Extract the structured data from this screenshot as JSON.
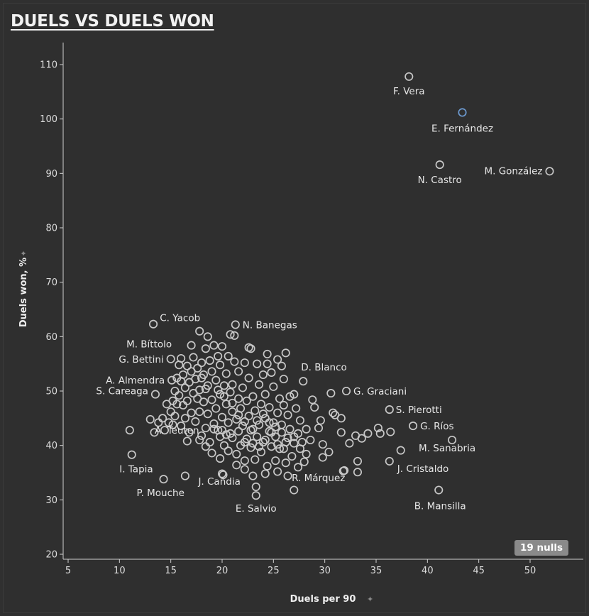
{
  "title": "DUELS VS DUELS WON",
  "nulls_badge": "19 nulls",
  "colors": {
    "background": "#2f2f2f",
    "point": "#c8c8c8",
    "highlight": "#6d9bd1",
    "axis": "#cfcfcf",
    "badge": "#8a8a8a"
  },
  "icons": {
    "pin": "pin-icon"
  },
  "chart_data": {
    "type": "scatter",
    "title": "DUELS VS DUELS WON",
    "xlabel": "Duels per 90",
    "ylabel": "Duels won, %",
    "xlim": [
      5,
      55
    ],
    "ylim": [
      19,
      115
    ],
    "xticks": [
      5,
      10,
      15,
      20,
      25,
      30,
      35,
      40,
      45,
      50
    ],
    "yticks": [
      20,
      30,
      40,
      50,
      60,
      70,
      80,
      90,
      100,
      110
    ],
    "grid": false,
    "labeled_points": [
      {
        "name": "F. Vera",
        "x": 38.2,
        "y": 107.8
      },
      {
        "name": "E. Fernández",
        "x": 43.4,
        "y": 101.2,
        "highlight": true
      },
      {
        "name": "N. Castro",
        "x": 41.2,
        "y": 91.6
      },
      {
        "name": "M. González",
        "x": 51.9,
        "y": 90.4
      },
      {
        "name": "C. Yacob",
        "x": 17.8,
        "y": 61.0
      },
      {
        "name": "N. Banegas",
        "x": 21.3,
        "y": 62.2
      },
      {
        "name": "M. Bíttolo",
        "x": 13.3,
        "y": 62.3
      },
      {
        "name": "G. Bettini",
        "x": 15.0,
        "y": 55.9
      },
      {
        "name": "A. Almendra",
        "x": 15.1,
        "y": 52.0
      },
      {
        "name": "D. Blanco",
        "x": 27.9,
        "y": 51.8
      },
      {
        "name": "G. Graciani",
        "x": 32.1,
        "y": 50.0
      },
      {
        "name": "S. Careaga",
        "x": 13.5,
        "y": 49.4
      },
      {
        "name": "S. Pierotti",
        "x": 36.3,
        "y": 46.6
      },
      {
        "name": "G. Ríos",
        "x": 38.6,
        "y": 43.6
      },
      {
        "name": "M. Sanabria",
        "x": 42.4,
        "y": 41.0
      },
      {
        "name": "A. Teuten",
        "x": 20.0,
        "y": 42.8
      },
      {
        "name": "I. Tapia",
        "x": 11.2,
        "y": 38.3
      },
      {
        "name": "J. Cristaldo",
        "x": 36.3,
        "y": 37.1
      },
      {
        "name": "R. Márquez",
        "x": 31.9,
        "y": 35.4
      },
      {
        "name": "J. Candia",
        "x": 20.1,
        "y": 34.6
      },
      {
        "name": "P. Mouche",
        "x": 14.3,
        "y": 33.8
      },
      {
        "name": "E. Salvio",
        "x": 23.3,
        "y": 30.8
      },
      {
        "name": "B. Mansilla",
        "x": 41.1,
        "y": 31.8
      }
    ],
    "points": [
      [
        23.3,
        32.4
      ],
      [
        27.0,
        31.8
      ],
      [
        16.4,
        34.4
      ],
      [
        20.0,
        34.8
      ],
      [
        31.8,
        35.3
      ],
      [
        33.2,
        35.1
      ],
      [
        33.2,
        37.1
      ],
      [
        35.4,
        42.2
      ],
      [
        37.4,
        39.1
      ],
      [
        36.4,
        42.5
      ],
      [
        35.2,
        43.2
      ],
      [
        34.2,
        42.2
      ],
      [
        33.6,
        41.3
      ],
      [
        33.0,
        41.8
      ],
      [
        32.4,
        40.4
      ],
      [
        31.6,
        42.4
      ],
      [
        31.6,
        45.0
      ],
      [
        31.0,
        45.6
      ],
      [
        30.8,
        46.0
      ],
      [
        30.6,
        49.6
      ],
      [
        30.4,
        38.8
      ],
      [
        29.8,
        40.2
      ],
      [
        29.8,
        37.8
      ],
      [
        29.6,
        44.6
      ],
      [
        29.4,
        43.2
      ],
      [
        29.0,
        47.0
      ],
      [
        28.8,
        48.4
      ],
      [
        28.6,
        41.0
      ],
      [
        28.2,
        43.0
      ],
      [
        28.0,
        37.0
      ],
      [
        27.8,
        40.6
      ],
      [
        27.6,
        44.6
      ],
      [
        27.4,
        42.2
      ],
      [
        27.4,
        36.0
      ],
      [
        27.2,
        46.8
      ],
      [
        27.0,
        49.4
      ],
      [
        27.0,
        41.6
      ],
      [
        26.8,
        38.0
      ],
      [
        26.6,
        43.0
      ],
      [
        26.6,
        49.0
      ],
      [
        26.4,
        45.6
      ],
      [
        26.2,
        40.6
      ],
      [
        26.2,
        36.8
      ],
      [
        26.0,
        47.4
      ],
      [
        26.0,
        52.2
      ],
      [
        25.8,
        54.6
      ],
      [
        25.8,
        43.8
      ],
      [
        25.6,
        39.4
      ],
      [
        25.6,
        48.6
      ],
      [
        25.4,
        55.8
      ],
      [
        25.4,
        46.0
      ],
      [
        25.2,
        41.6
      ],
      [
        25.2,
        37.2
      ],
      [
        25.0,
        50.8
      ],
      [
        25.0,
        44.2
      ],
      [
        24.8,
        53.4
      ],
      [
        24.8,
        39.8
      ],
      [
        24.6,
        47.0
      ],
      [
        24.6,
        42.6
      ],
      [
        24.4,
        55.0
      ],
      [
        24.4,
        36.2
      ],
      [
        24.2,
        49.4
      ],
      [
        24.2,
        45.0
      ],
      [
        24.0,
        40.6
      ],
      [
        24.0,
        53.0
      ],
      [
        23.8,
        47.6
      ],
      [
        23.8,
        38.8
      ],
      [
        23.6,
        43.8
      ],
      [
        23.6,
        51.2
      ],
      [
        23.4,
        41.6
      ],
      [
        23.4,
        55.0
      ],
      [
        23.2,
        46.4
      ],
      [
        23.2,
        37.4
      ],
      [
        23.0,
        49.0
      ],
      [
        23.0,
        43.0
      ],
      [
        22.8,
        57.8
      ],
      [
        22.8,
        39.6
      ],
      [
        22.6,
        52.4
      ],
      [
        22.6,
        45.4
      ],
      [
        22.4,
        41.2
      ],
      [
        22.4,
        48.2
      ],
      [
        22.2,
        55.2
      ],
      [
        22.2,
        37.2
      ],
      [
        22.0,
        50.6
      ],
      [
        22.0,
        43.6
      ],
      [
        21.8,
        46.8
      ],
      [
        21.8,
        40.0
      ],
      [
        21.6,
        53.6
      ],
      [
        21.6,
        48.6
      ],
      [
        21.4,
        44.8
      ],
      [
        21.4,
        38.4
      ],
      [
        21.2,
        55.4
      ],
      [
        21.2,
        60.2
      ],
      [
        21.0,
        51.2
      ],
      [
        21.0,
        46.2
      ],
      [
        20.8,
        42.2
      ],
      [
        20.8,
        49.8
      ],
      [
        20.6,
        56.4
      ],
      [
        20.6,
        44.2
      ],
      [
        20.4,
        53.2
      ],
      [
        20.4,
        47.6
      ],
      [
        20.2,
        40.0
      ],
      [
        20.2,
        51.0
      ],
      [
        20.0,
        58.2
      ],
      [
        20.0,
        45.2
      ],
      [
        19.8,
        54.8
      ],
      [
        19.8,
        49.4
      ],
      [
        19.6,
        42.8
      ],
      [
        19.6,
        56.4
      ],
      [
        19.4,
        52.0
      ],
      [
        19.4,
        46.8
      ],
      [
        19.2,
        58.4
      ],
      [
        19.2,
        44.0
      ],
      [
        19.0,
        53.6
      ],
      [
        19.0,
        48.4
      ],
      [
        18.8,
        40.6
      ],
      [
        18.8,
        55.6
      ],
      [
        18.6,
        51.0
      ],
      [
        18.6,
        45.8
      ],
      [
        18.4,
        57.8
      ],
      [
        18.4,
        43.2
      ],
      [
        18.2,
        53.0
      ],
      [
        18.2,
        48.0
      ],
      [
        18.0,
        55.2
      ],
      [
        18.0,
        41.8
      ],
      [
        17.8,
        50.2
      ],
      [
        17.8,
        46.2
      ],
      [
        17.6,
        54.2
      ],
      [
        17.6,
        48.6
      ],
      [
        17.4,
        52.2
      ],
      [
        17.4,
        44.4
      ],
      [
        17.2,
        56.2
      ],
      [
        17.2,
        49.6
      ],
      [
        17.0,
        53.6
      ],
      [
        17.0,
        46.0
      ],
      [
        16.8,
        51.6
      ],
      [
        16.8,
        42.4
      ],
      [
        16.6,
        54.6
      ],
      [
        16.6,
        48.2
      ],
      [
        16.4,
        50.6
      ],
      [
        16.4,
        45.0
      ],
      [
        16.2,
        53.0
      ],
      [
        16.2,
        47.4
      ],
      [
        16.0,
        51.8
      ],
      [
        16.0,
        43.6
      ],
      [
        15.8,
        49.2
      ],
      [
        15.8,
        54.8
      ],
      [
        15.6,
        47.6
      ],
      [
        15.6,
        52.4
      ],
      [
        15.4,
        45.4
      ],
      [
        15.4,
        50.0
      ],
      [
        15.2,
        48.2
      ],
      [
        15.2,
        43.8
      ],
      [
        15.0,
        46.2
      ],
      [
        14.8,
        44.2
      ],
      [
        14.6,
        47.6
      ],
      [
        14.4,
        42.8
      ],
      [
        14.2,
        45.0
      ],
      [
        13.8,
        44.2
      ],
      [
        13.4,
        42.4
      ],
      [
        13.0,
        44.8
      ],
      [
        16.6,
        40.8
      ],
      [
        17.8,
        41.0
      ],
      [
        18.4,
        39.8
      ],
      [
        19.0,
        38.6
      ],
      [
        19.8,
        37.6
      ],
      [
        20.6,
        39.0
      ],
      [
        21.4,
        36.4
      ],
      [
        22.2,
        35.6
      ],
      [
        23.0,
        34.4
      ],
      [
        24.2,
        34.8
      ],
      [
        25.4,
        35.2
      ],
      [
        26.4,
        34.4
      ],
      [
        11.0,
        42.8
      ],
      [
        16.0,
        56.0
      ],
      [
        17.0,
        58.4
      ],
      [
        18.6,
        60.0
      ],
      [
        20.8,
        60.4
      ],
      [
        22.6,
        58.0
      ],
      [
        24.4,
        56.8
      ],
      [
        26.2,
        57.0
      ],
      [
        18.0,
        52.4
      ],
      [
        18.4,
        50.4
      ],
      [
        19.6,
        50.2
      ],
      [
        20.2,
        49.0
      ],
      [
        21.0,
        47.8
      ],
      [
        21.6,
        45.6
      ],
      [
        22.2,
        44.4
      ],
      [
        22.8,
        42.8
      ],
      [
        23.4,
        44.6
      ],
      [
        24.0,
        45.8
      ],
      [
        24.6,
        44.2
      ],
      [
        25.2,
        43.4
      ],
      [
        25.8,
        42.4
      ],
      [
        26.4,
        41.4
      ],
      [
        27.0,
        40.4
      ],
      [
        27.6,
        39.4
      ],
      [
        28.2,
        38.4
      ],
      [
        19.2,
        43.0
      ],
      [
        19.8,
        41.6
      ],
      [
        20.4,
        42.0
      ],
      [
        21.0,
        41.4
      ],
      [
        21.6,
        42.6
      ],
      [
        22.2,
        40.6
      ],
      [
        23.0,
        40.4
      ],
      [
        23.6,
        39.8
      ],
      [
        24.2,
        41.0
      ],
      [
        24.8,
        42.4
      ],
      [
        25.4,
        40.2
      ],
      [
        26.0,
        39.4
      ]
    ]
  },
  "axis_lines": {
    "color": "#cfcfcf"
  }
}
